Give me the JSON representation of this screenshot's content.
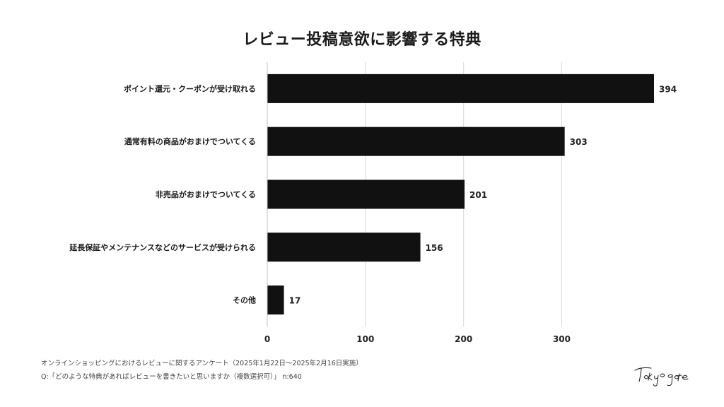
{
  "chart_data": {
    "type": "bar",
    "orientation": "horizontal",
    "title": "レビュー投稿意欲に影響する特典",
    "categories": [
      "ポイント還元・クーポンが受け取れる",
      "通常有料の商品がおまけでついてくる",
      "非売品がおまけでついてくる",
      "延長保証やメンテナンスなどのサービスが受けられる",
      "その他"
    ],
    "values": [
      394,
      303,
      201,
      156,
      17
    ],
    "xticks": [
      "0",
      "100",
      "200",
      "300"
    ],
    "xlim": [
      0,
      394
    ],
    "grid": true,
    "bar_color": "#111111",
    "grid_color": "#d9d9d9"
  },
  "footnotes": {
    "source": "オンラインショッピングにおけるレビューに関するアンケート（2025年1月22日〜2025年2月16日実施）",
    "question": "Q:「どのような特典があればレビューを書きたいと思いますか（複数選択可）」 n:640"
  },
  "logo": {
    "text": "Tokyo gate"
  }
}
